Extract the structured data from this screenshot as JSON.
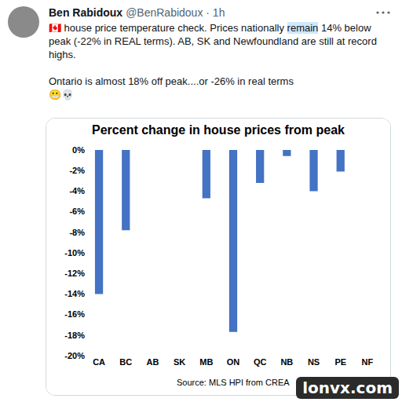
{
  "tweet": {
    "author": "Ben Rabidoux",
    "meta": "@BenRabidoux · 1h",
    "highlight": "remain",
    "paragraphs": [
      "🇨🇦 house price temperature check. Prices nationally remain 14% below peak (-22% in REAL terms). AB, SK and Newfoundland are still at record highs.",
      "Ontario is almost 18% off peak....or -26% in real terms",
      "😬💀"
    ]
  },
  "chart_data": {
    "type": "bar",
    "title": "Percent change in house prices from peak",
    "categories": [
      "CA",
      "BC",
      "AB",
      "SK",
      "MB",
      "ON",
      "QC",
      "NB",
      "NS",
      "PE",
      "NF"
    ],
    "values": [
      -14.0,
      -7.8,
      0,
      0,
      -4.7,
      -17.7,
      -3.2,
      -0.6,
      -4.0,
      -2.1,
      0
    ],
    "color": "#4472c4",
    "ylim": [
      -20,
      0
    ],
    "yticks": [
      {
        "value": -20,
        "label": "-20%"
      },
      {
        "value": -18,
        "label": "-18%"
      },
      {
        "value": -16,
        "label": "-16%"
      },
      {
        "value": -14,
        "label": "-14%"
      },
      {
        "value": -12,
        "label": "-12%"
      },
      {
        "value": -10,
        "label": "-10%"
      },
      {
        "value": -8,
        "label": "-8%"
      },
      {
        "value": -6,
        "label": "-6%"
      },
      {
        "value": -4,
        "label": "-4%"
      },
      {
        "value": -2,
        "label": "-2%"
      },
      {
        "value": 0,
        "label": "0%"
      }
    ],
    "grid": false,
    "annotations": [
      "Source: MLS HPI from CREA"
    ]
  },
  "watermark": "lonvx.com"
}
